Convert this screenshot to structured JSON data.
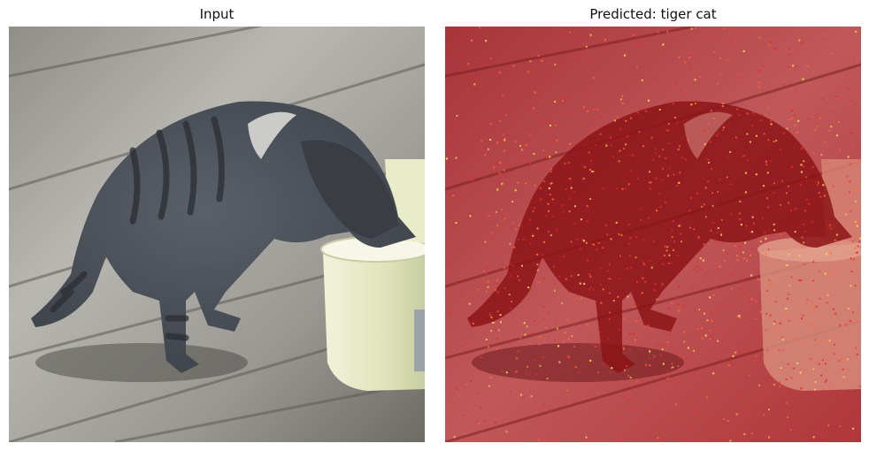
{
  "figure": {
    "left_panel": {
      "title": "Input"
    },
    "right_panel": {
      "title": "Predicted: tiger cat"
    }
  },
  "colors": {
    "deck_light": "#b9b8b2",
    "deck_dark": "#6f6d68",
    "cat_fur": "#4c5158",
    "cat_stripe": "#2b2e33",
    "bucket": "#e4e8c4",
    "overlay_red": "#b3262a",
    "hot_yellow": "#ffe25a"
  }
}
